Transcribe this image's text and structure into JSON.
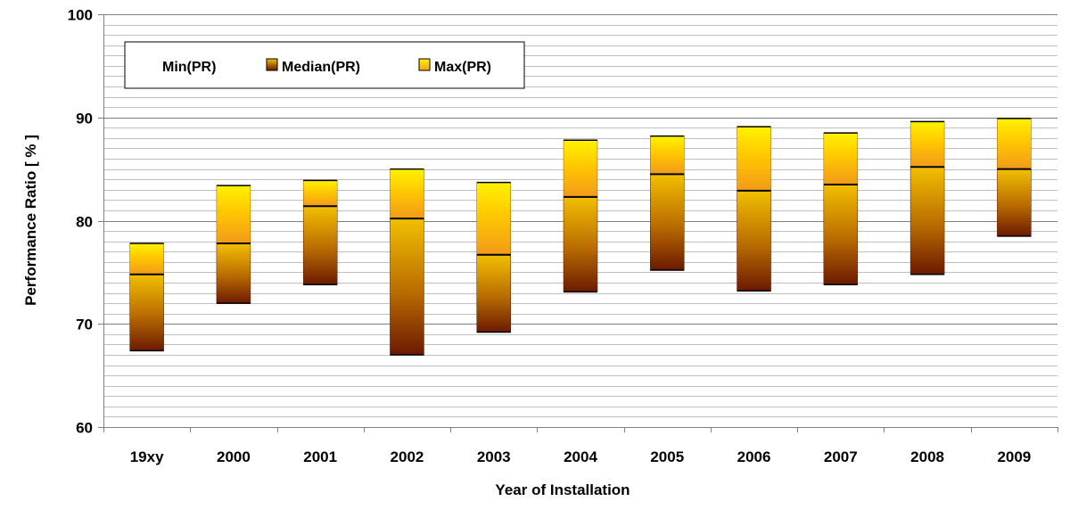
{
  "chart_data": {
    "type": "bar",
    "subtype": "floating-range",
    "categories": [
      "19xy",
      "2000",
      "2001",
      "2002",
      "2003",
      "2004",
      "2005",
      "2006",
      "2007",
      "2008",
      "2009"
    ],
    "series": [
      {
        "name": "Min(PR)",
        "values": [
          67.4,
          72.0,
          73.8,
          67.0,
          69.2,
          73.1,
          75.2,
          73.2,
          73.8,
          74.8,
          78.5
        ]
      },
      {
        "name": "Median(PR)",
        "values": [
          74.8,
          77.8,
          81.4,
          80.2,
          76.7,
          82.3,
          84.5,
          82.9,
          83.5,
          85.2,
          85.0
        ]
      },
      {
        "name": "Max(PR)",
        "values": [
          77.8,
          83.4,
          83.9,
          85.0,
          83.7,
          87.8,
          88.2,
          89.1,
          88.5,
          89.6,
          89.9
        ]
      }
    ],
    "xlabel": "Year of Installation",
    "ylabel": "Performance Ratio [ % ]",
    "ylim": [
      60,
      100
    ],
    "yticks": [
      60,
      70,
      80,
      90,
      100
    ],
    "grid": {
      "major": true,
      "minor": true,
      "minor_step": 1
    },
    "legend_position": "top-left",
    "colors": {
      "bar_dark": "#6b1a00",
      "bar_mid": "#e6a800",
      "bar_orange": "#f7a020",
      "bar_light": "#ffe600",
      "grid_major": "#808080",
      "grid_minor": "#c0c0c0"
    }
  }
}
